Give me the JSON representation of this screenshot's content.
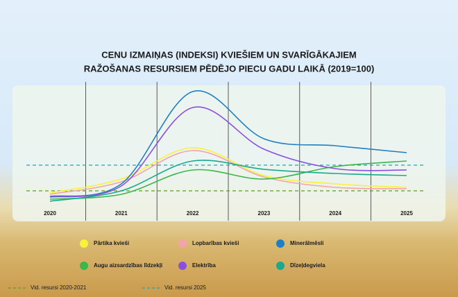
{
  "chart_data": {
    "type": "line",
    "title": [
      "CENU IZMAIŅAS (INDEKSI) KVIEŠIEM UN SVARĪGĀKAJIEM",
      "RAŽOŠANAS RESURSIEM PĒDĒJO PIECU GADU LAIKĀ (2019=100)"
    ],
    "categories": [
      "2020",
      "2021",
      "2022",
      "2023",
      "2024",
      "2025"
    ],
    "ylim": [
      74,
      420
    ],
    "series": [
      {
        "name": "Pārtika kvieši",
        "color": "#f7f23a",
        "values": [
          114,
          154,
          244,
          164,
          140,
          130
        ]
      },
      {
        "name": "Lopbarības kvieši",
        "color": "#f4a3ab",
        "values": [
          110,
          146,
          236,
          160,
          130,
          126
        ]
      },
      {
        "name": "Minerālmēsli",
        "color": "#1f7fc0",
        "values": [
          104,
          140,
          406,
          270,
          250,
          230
        ]
      },
      {
        "name": "Augu aizsardzības līdzekļi",
        "color": "#3cb54a",
        "values": [
          96,
          110,
          180,
          154,
          190,
          206
        ]
      },
      {
        "name": "Elektrība",
        "color": "#8a4fe0",
        "values": [
          102,
          134,
          360,
          240,
          184,
          180
        ]
      },
      {
        "name": "Dīzeļdegviela",
        "color": "#1aa88e",
        "values": [
          90,
          120,
          206,
          182,
          170,
          164
        ]
      }
    ],
    "reference_lines": [
      {
        "name": "Vid. resursi 2020-2021",
        "color": "#5e9a22",
        "value": 120
      },
      {
        "name": "Vid. resursi 2025",
        "color": "#1aa8b0",
        "value": 194
      }
    ]
  }
}
